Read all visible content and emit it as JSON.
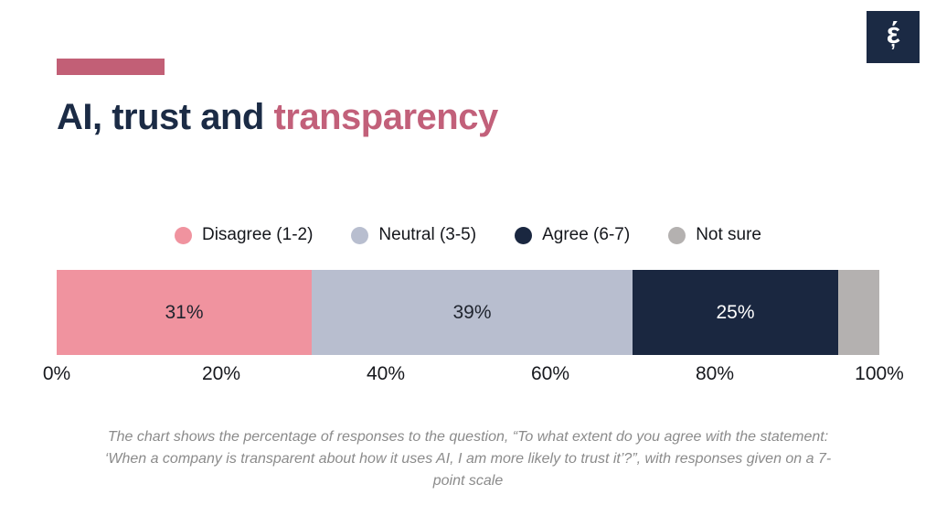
{
  "header": {
    "title_part1": "AI, trust and",
    "title_part2": "transparency",
    "title_main_color": "#1B2B45",
    "title_accent_color": "#C2607A",
    "accent_bar_color": "#C25F76",
    "logo": {
      "glyph": "έ",
      "mark": "’",
      "background": "#1B2A44",
      "foreground": "#FFFFFF"
    }
  },
  "chart_data": {
    "type": "bar",
    "variant": "horizontal-stacked",
    "title": "AI, trust and transparency",
    "question": "To what extent do you agree with the statement: ‘When a company is transparent about how it uses AI, I am more likely to trust it’?",
    "legend_position": "top-center",
    "grid": false,
    "categories": [
      "Disagree (1-2)",
      "Neutral (3-5)",
      "Agree (6-7)",
      "Not sure"
    ],
    "values": [
      31,
      39,
      25,
      5
    ],
    "legend": [
      {
        "label": "Disagree (1-2)",
        "color": "#F0939F"
      },
      {
        "label": "Neutral (3-5)",
        "color": "#B8BECF"
      },
      {
        "label": "Agree (6-7)",
        "color": "#1A2740"
      },
      {
        "label": "Not sure",
        "color": "#B4B1B0"
      }
    ],
    "segments": [
      {
        "label": "Disagree (1-2)",
        "value": 31,
        "display": "31%",
        "color": "#F0939F",
        "text_color": "#1F242E"
      },
      {
        "label": "Neutral (3-5)",
        "value": 39,
        "display": "39%",
        "color": "#B8BECF",
        "text_color": "#1F242E"
      },
      {
        "label": "Agree (6-7)",
        "value": 25,
        "display": "25%",
        "color": "#1A2740",
        "text_color": "#FFFFFF"
      },
      {
        "label": "Not sure",
        "value": 5,
        "display": "",
        "color": "#B4B1B0",
        "text_color": "#1F242E"
      }
    ],
    "x_axis": {
      "range": [
        0,
        100
      ],
      "ticks": [
        "0%",
        "20%",
        "40%",
        "60%",
        "80%",
        "100%"
      ]
    }
  },
  "caption": {
    "text": "The chart shows the percentage of responses to the question, “To what extent do you agree with the statement: ‘When a company is transparent about how it uses AI, I am more likely to trust it’?”, with responses given on a 7-point scale",
    "color": "#8B8B8B"
  }
}
